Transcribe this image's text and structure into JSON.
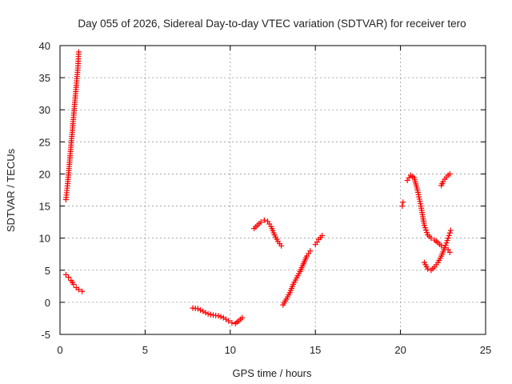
{
  "chart_data": {
    "type": "scatter",
    "title": "Day 055 of 2026, Sidereal Day-to-day VTEC variation (SDTVAR) for receiver tero",
    "xlabel": "GPS time / hours",
    "ylabel": "SDTVAR / TECUs",
    "xlim": [
      0,
      25
    ],
    "ylim": [
      -5,
      40
    ],
    "xticks": [
      "0",
      "5",
      "10",
      "15",
      "20",
      "25"
    ],
    "yticks": [
      "-5",
      "0",
      "5",
      "10",
      "15",
      "20",
      "25",
      "30",
      "35",
      "40"
    ],
    "grid": true,
    "marker": "plus",
    "color": "#ff0000",
    "segments": [
      {
        "x": [
          0.35,
          0.45,
          0.55,
          0.65,
          0.75,
          0.85,
          0.95,
          1.05,
          1.1
        ],
        "y": [
          16,
          18.5,
          21.5,
          24.5,
          27.5,
          30.5,
          33.5,
          36.5,
          39
        ]
      },
      {
        "x": [
          0.35,
          0.5,
          0.65,
          0.8,
          0.95,
          1.1,
          1.3
        ],
        "y": [
          4.3,
          3.9,
          3.4,
          2.8,
          2.3,
          2.0,
          1.7
        ]
      },
      {
        "x": [
          7.8,
          8.1,
          8.4,
          8.7,
          9.0,
          9.3,
          9.6,
          9.9,
          10.1,
          10.3,
          10.5,
          10.7
        ],
        "y": [
          -0.9,
          -1.0,
          -1.4,
          -1.8,
          -2.0,
          -2.1,
          -2.4,
          -2.9,
          -3.2,
          -3.3,
          -2.9,
          -2.4
        ]
      },
      {
        "x": [
          11.4,
          11.6,
          11.8,
          12.0,
          12.2,
          12.4,
          12.6,
          12.8,
          13.0
        ],
        "y": [
          11.5,
          12.0,
          12.5,
          12.8,
          12.6,
          11.8,
          10.5,
          9.5,
          8.8
        ]
      },
      {
        "x": [
          13.1,
          13.3,
          13.5,
          13.7,
          13.9,
          14.1,
          14.3,
          14.5,
          14.7
        ],
        "y": [
          -0.4,
          0.5,
          1.5,
          2.8,
          3.8,
          4.8,
          6.0,
          7.2,
          8.0
        ]
      },
      {
        "x": [
          15.0,
          15.2,
          15.4
        ],
        "y": [
          9.0,
          9.8,
          10.4
        ]
      },
      {
        "x": [
          20.1,
          20.15
        ],
        "y": [
          15.0,
          15.6
        ]
      },
      {
        "x": [
          20.4,
          20.6,
          20.8,
          21.0,
          21.2,
          21.4,
          21.6,
          21.8,
          22.0,
          22.2,
          22.4,
          22.6,
          22.8,
          22.9
        ],
        "y": [
          19.0,
          19.8,
          19.4,
          17.5,
          15.0,
          12.0,
          10.5,
          10.0,
          9.7,
          9.3,
          8.8,
          8.5,
          8.2,
          7.8
        ]
      },
      {
        "x": [
          21.4,
          21.6,
          21.8,
          22.0,
          22.2,
          22.4,
          22.6,
          22.8,
          22.95
        ],
        "y": [
          6.2,
          5.2,
          5.0,
          5.5,
          6.2,
          7.2,
          8.5,
          10.0,
          11.2
        ]
      },
      {
        "x": [
          22.4,
          22.5,
          22.6,
          22.7,
          22.8,
          22.9
        ],
        "y": [
          18.2,
          18.8,
          19.2,
          19.5,
          19.8,
          20.0
        ]
      }
    ]
  }
}
